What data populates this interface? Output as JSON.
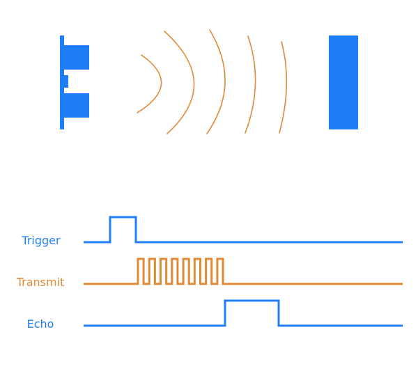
{
  "colors": {
    "sensor": "#1f7ef7",
    "wave": "#e08a35",
    "background": "#ffffff"
  },
  "scene": {
    "sensor_icon": "ultrasonic-sensor-icon",
    "wave_icon": "sound-wave-arcs",
    "target_icon": "target-obstacle-block"
  },
  "signals": [
    {
      "label": "Trigger",
      "color": "#1f7ef7",
      "shape": "single-pulse"
    },
    {
      "label": "Transmit",
      "color": "#e08a35",
      "shape": "pulse-burst",
      "pulse_count": 8
    },
    {
      "label": "Echo",
      "color": "#1f7ef7",
      "shape": "single-pulse"
    }
  ]
}
